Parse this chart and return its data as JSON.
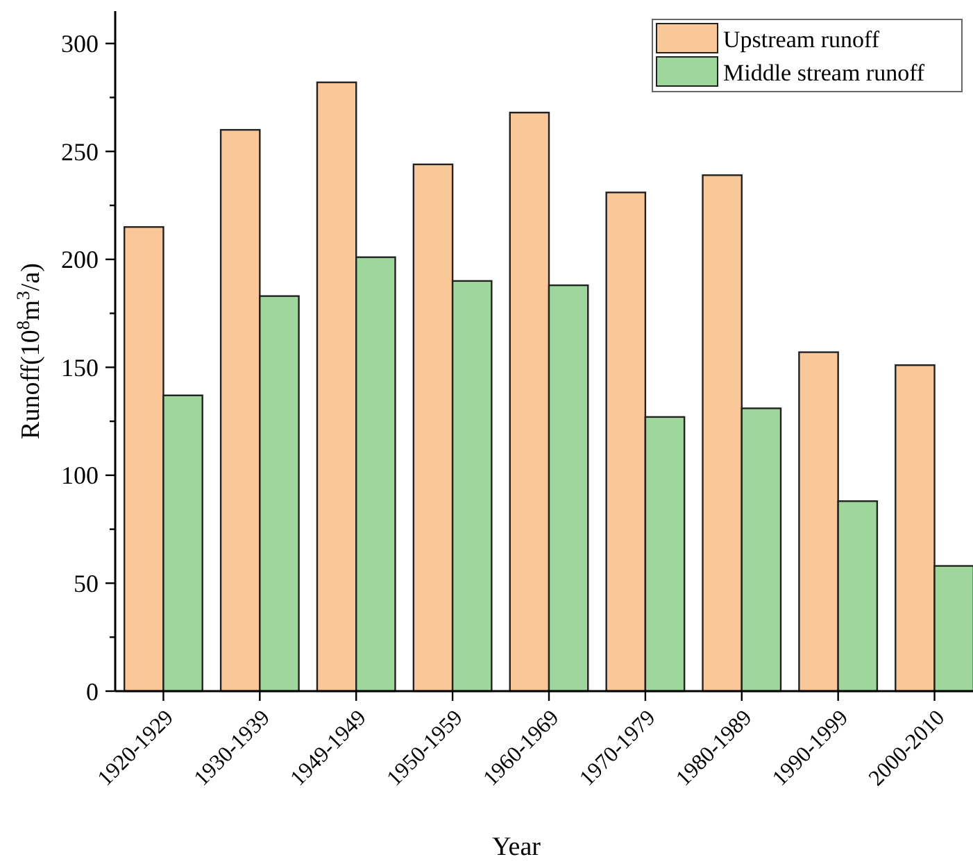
{
  "chart_data": {
    "type": "bar",
    "xlabel": "Year",
    "ylabel": "Runoff(10$^{8}$m$^{3}$/a)",
    "categories": [
      "1920-1929",
      "1930-1939",
      "1949-1949",
      "1950-1959",
      "1960-1969",
      "1970-1979",
      "1980-1989",
      "1990-1999",
      "2000-2010"
    ],
    "series": [
      {
        "name": "Upstream runoff",
        "color": "#fac898",
        "values": [
          215,
          260,
          282,
          244,
          268,
          231,
          239,
          157,
          151
        ]
      },
      {
        "name": "Middle stream runoff",
        "color": "#9fd69b",
        "values": [
          137,
          183,
          201,
          190,
          188,
          127,
          131,
          88,
          58
        ]
      }
    ],
    "ylim": [
      0,
      315
    ],
    "yticks": [
      0,
      {
        "value": 25,
        "label": null
      },
      50,
      {
        "value": 75,
        "label": null
      },
      100,
      {
        "value": 125,
        "label": null
      },
      150,
      {
        "value": 175,
        "label": null
      },
      200,
      {
        "value": 225,
        "label": null
      },
      250,
      {
        "value": 275,
        "label": null
      },
      300
    ],
    "grid": false,
    "legend": "top right"
  }
}
